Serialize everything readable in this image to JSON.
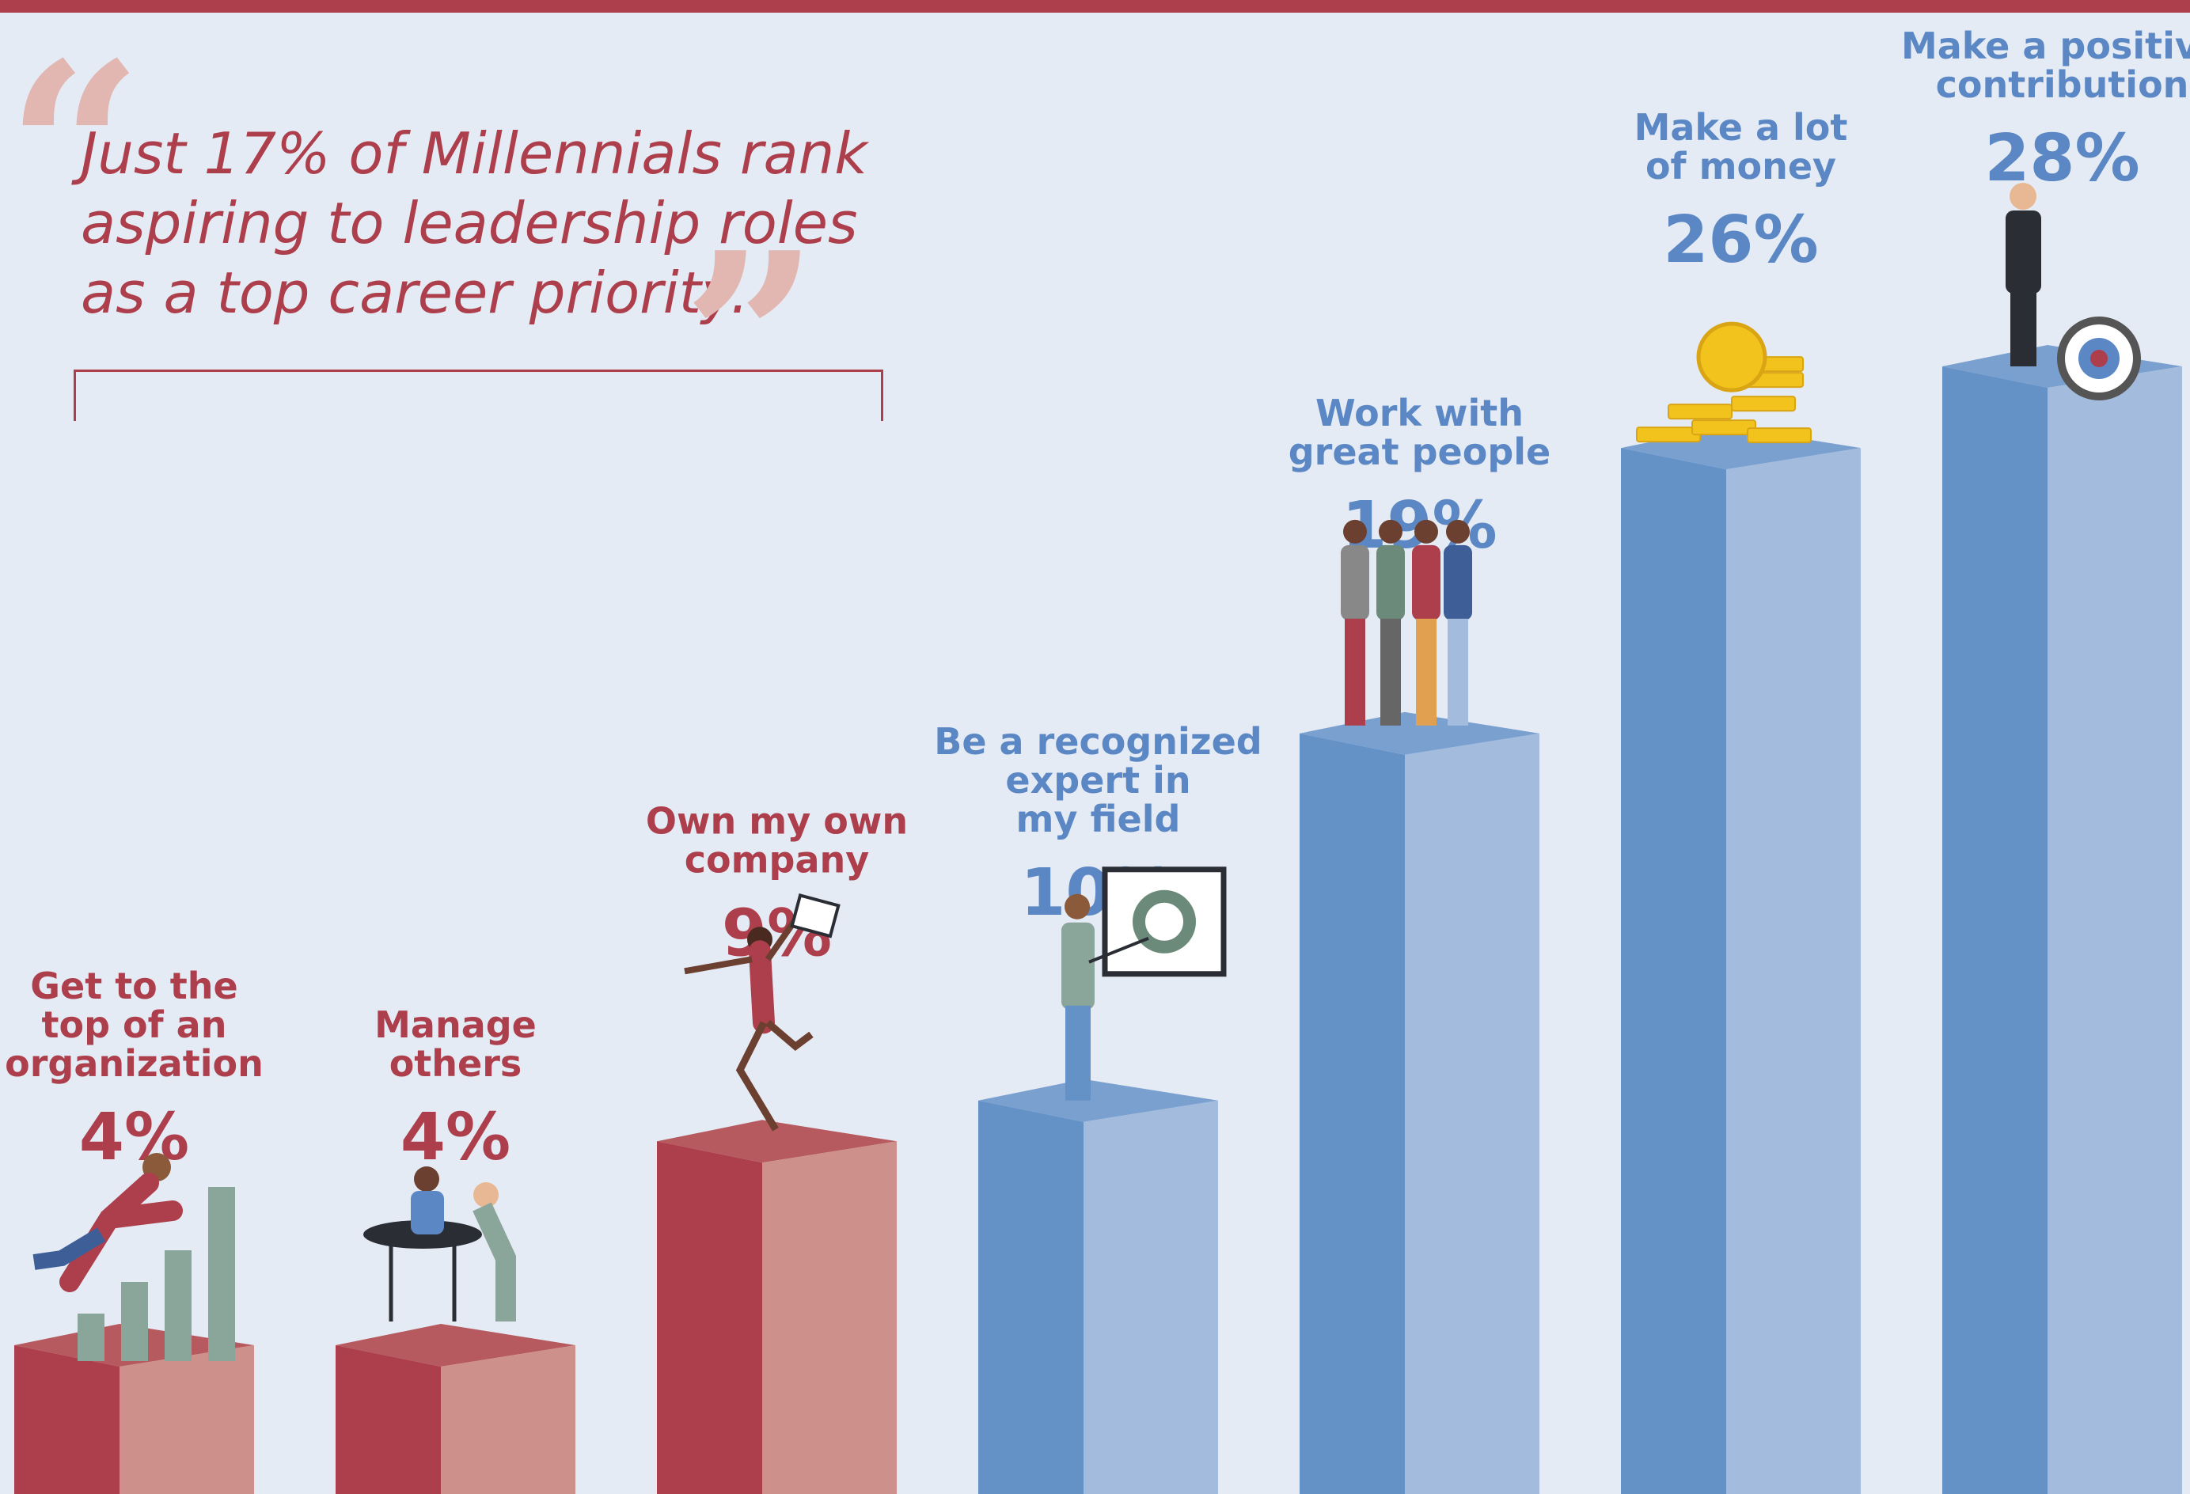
{
  "quote": {
    "open_mark": "“",
    "close_mark": "”",
    "text": "Just 17% of Millennials rank\naspiring to leadership roles\nas a top career priority."
  },
  "colors": {
    "red_front": "#ad3f4c",
    "red_side": "#cd908b",
    "red_top": "#b65a5f",
    "blue_front": "#6492c7",
    "blue_side": "#a3bbdc",
    "blue_top": "#7aa0d0",
    "red_text": "#ad3f4c",
    "blue_text": "#5b88c4",
    "background": "#e5ebf4"
  },
  "chart_data": {
    "type": "bar",
    "categories": [
      "Get to the\ntop of an\norganization",
      "Manage\nothers",
      "Own my own\ncompany",
      "Be a recognized\nexpert in\nmy field",
      "Work with\ngreat people",
      "Make a lot\nof money",
      "Make a positive\ncontribution"
    ],
    "values": [
      4,
      4,
      9,
      10,
      19,
      26,
      28
    ],
    "value_labels": [
      "4%",
      "4%",
      "9%",
      "10%",
      "19%",
      "26%",
      "28%"
    ],
    "bar_colors": [
      "red",
      "red",
      "red",
      "blue",
      "blue",
      "blue",
      "blue"
    ],
    "icons": [
      "man-climbing-bar-chart-icon",
      "meeting-table-icon",
      "jumping-woman-icon",
      "presenter-with-chart-icon",
      "team-group-icon",
      "gold-coins-icon",
      "businessman-with-target-icon"
    ],
    "ylim": [
      0,
      28
    ]
  }
}
